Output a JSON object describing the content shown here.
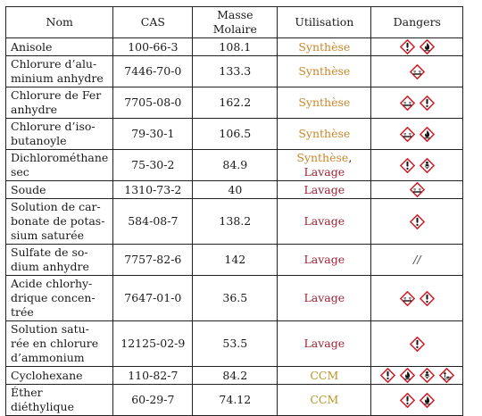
{
  "headers": [
    "Nom",
    "CAS",
    "Masse Molaire",
    "Utilisation",
    "Dangers"
  ],
  "rows": [
    {
      "nom": [
        "Anisole"
      ],
      "cas": "100-66-3",
      "mm": "108.1",
      "util": [
        {
          "text": "Synthèse",
          "kind": "synthese"
        }
      ],
      "dangers": [
        "exclamation",
        "flame"
      ]
    },
    {
      "nom": [
        "Chlorure d’alu-",
        "minium anhydre"
      ],
      "cas": "7446-70-0",
      "mm": "133.3",
      "util": [
        {
          "text": "Synthèse",
          "kind": "synthese"
        }
      ],
      "dangers": [
        "corrosive"
      ]
    },
    {
      "nom": [
        "Chlorure de Fer",
        "anhydre"
      ],
      "cas": "7705-08-0",
      "mm": "162.2",
      "util": [
        {
          "text": "Synthèse",
          "kind": "synthese"
        }
      ],
      "dangers": [
        "corrosive",
        "exclamation"
      ]
    },
    {
      "nom": [
        "Chlorure d’iso-",
        "butanoyle"
      ],
      "cas": "79-30-1",
      "mm": "106.5",
      "util": [
        {
          "text": "Synthèse",
          "kind": "synthese"
        }
      ],
      "dangers": [
        "corrosive",
        "flame"
      ]
    },
    {
      "nom": [
        "Dichlorométhane",
        "sec"
      ],
      "cas": "75-30-2",
      "mm": "84.9",
      "util": [
        {
          "text": "Synthèse",
          "kind": "synthese"
        },
        {
          "text": ", ",
          "kind": "sep"
        },
        {
          "text": "Lavage",
          "kind": "lavage"
        }
      ],
      "dangers": [
        "exclamation",
        "health"
      ]
    },
    {
      "nom": [
        "Soude"
      ],
      "cas": "1310-73-2",
      "mm": "40",
      "util": [
        {
          "text": "Lavage",
          "kind": "lavage"
        }
      ],
      "dangers": [
        "corrosive"
      ]
    },
    {
      "nom": [
        "Solution de car-",
        "bonate de potas-",
        "sium saturée"
      ],
      "cas": "584-08-7",
      "mm": "138.2",
      "util": [
        {
          "text": "Lavage",
          "kind": "lavage"
        }
      ],
      "dangers": [
        "exclamation"
      ]
    },
    {
      "nom": [
        "Sulfate de so-",
        "dium anhydre"
      ],
      "cas": "7757-82-6",
      "mm": "142",
      "util": [
        {
          "text": "Lavage",
          "kind": "lavage"
        }
      ],
      "dangers": [],
      "no_danger": "//"
    },
    {
      "nom": [
        "Acide chlorhy-",
        "drique concen-",
        "trée"
      ],
      "cas": "7647-01-0",
      "mm": "36.5",
      "util": [
        {
          "text": "Lavage",
          "kind": "lavage"
        }
      ],
      "dangers": [
        "corrosive",
        "exclamation"
      ]
    },
    {
      "nom": [
        "Solution satu-",
        "rée en chlorure",
        "d’ammonium"
      ],
      "cas": "12125-02-9",
      "mm": "53.5",
      "util": [
        {
          "text": "Lavage",
          "kind": "lavage"
        }
      ],
      "dangers": [
        "exclamation"
      ]
    },
    {
      "nom": [
        "Cyclohexane"
      ],
      "cas": "110-82-7",
      "mm": "84.2",
      "util": [
        {
          "text": "CCM",
          "kind": "ccm"
        }
      ],
      "dangers": [
        "exclamation",
        "flame",
        "health",
        "environment"
      ]
    },
    {
      "nom": [
        "Éther diéthylique"
      ],
      "cas": "60-29-7",
      "mm": "74.12",
      "util": [
        {
          "text": "CCM",
          "kind": "ccm"
        }
      ],
      "dangers": [
        "exclamation",
        "flame"
      ]
    }
  ],
  "colors": {
    "synthese": "#c8862a",
    "lavage": "#9b2335",
    "ccm": "#b8952a",
    "pictogram_border": "#d0202a"
  }
}
